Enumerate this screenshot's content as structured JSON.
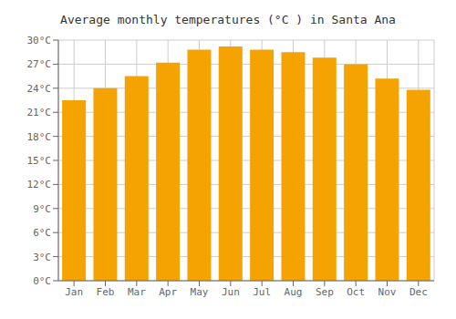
{
  "chart_data": {
    "type": "bar",
    "title": "Average monthly temperatures (°C ) in Santa Ana",
    "categories": [
      "Jan",
      "Feb",
      "Mar",
      "Apr",
      "May",
      "Jun",
      "Jul",
      "Aug",
      "Sep",
      "Oct",
      "Nov",
      "Dec"
    ],
    "values": [
      22.5,
      24.0,
      25.5,
      27.2,
      28.8,
      29.2,
      28.8,
      28.5,
      27.8,
      27.0,
      25.2,
      23.8
    ],
    "color": "#F5A300",
    "ylim": [
      0,
      30
    ],
    "yticks": [
      {
        "value": 0,
        "label": "0°C"
      },
      {
        "value": 3,
        "label": "3°C"
      },
      {
        "value": 6,
        "label": "6°C"
      },
      {
        "value": 9,
        "label": "9°C"
      },
      {
        "value": 12,
        "label": "12°C"
      },
      {
        "value": 15,
        "label": "15°C"
      },
      {
        "value": 18,
        "label": "18°C"
      },
      {
        "value": 21,
        "label": "21°C"
      },
      {
        "value": 24,
        "label": "24°C"
      },
      {
        "value": 27,
        "label": "27°C"
      },
      {
        "value": 30,
        "label": "30°C"
      }
    ],
    "grid": true
  }
}
